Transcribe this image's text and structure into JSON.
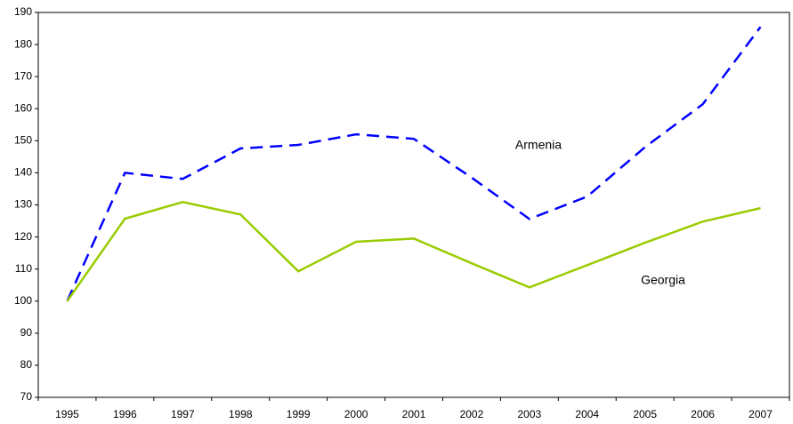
{
  "chart_data": {
    "type": "line",
    "categories": [
      "1995",
      "1996",
      "1997",
      "1998",
      "1999",
      "2000",
      "2001",
      "2002",
      "2003",
      "2004",
      "2005",
      "2006",
      "2007"
    ],
    "series": [
      {
        "name": "Armenia",
        "color": "#0000ff",
        "dash": true,
        "values": [
          100,
          140,
          138.1,
          147.6,
          148.7,
          152,
          150.6,
          138.5,
          125.6,
          132.6,
          148,
          161.4,
          185.5
        ]
      },
      {
        "name": "Georgia",
        "color": "#99cc00",
        "dash": false,
        "values": [
          100,
          125.7,
          130.9,
          127,
          109.3,
          118.5,
          119.5,
          111.8,
          104.3,
          111.2,
          118.2,
          124.8,
          129
        ]
      }
    ],
    "ylim": [
      70,
      190
    ],
    "yticks": [
      70,
      80,
      90,
      100,
      110,
      120,
      130,
      140,
      150,
      160,
      170,
      180,
      190
    ],
    "grid": false
  }
}
